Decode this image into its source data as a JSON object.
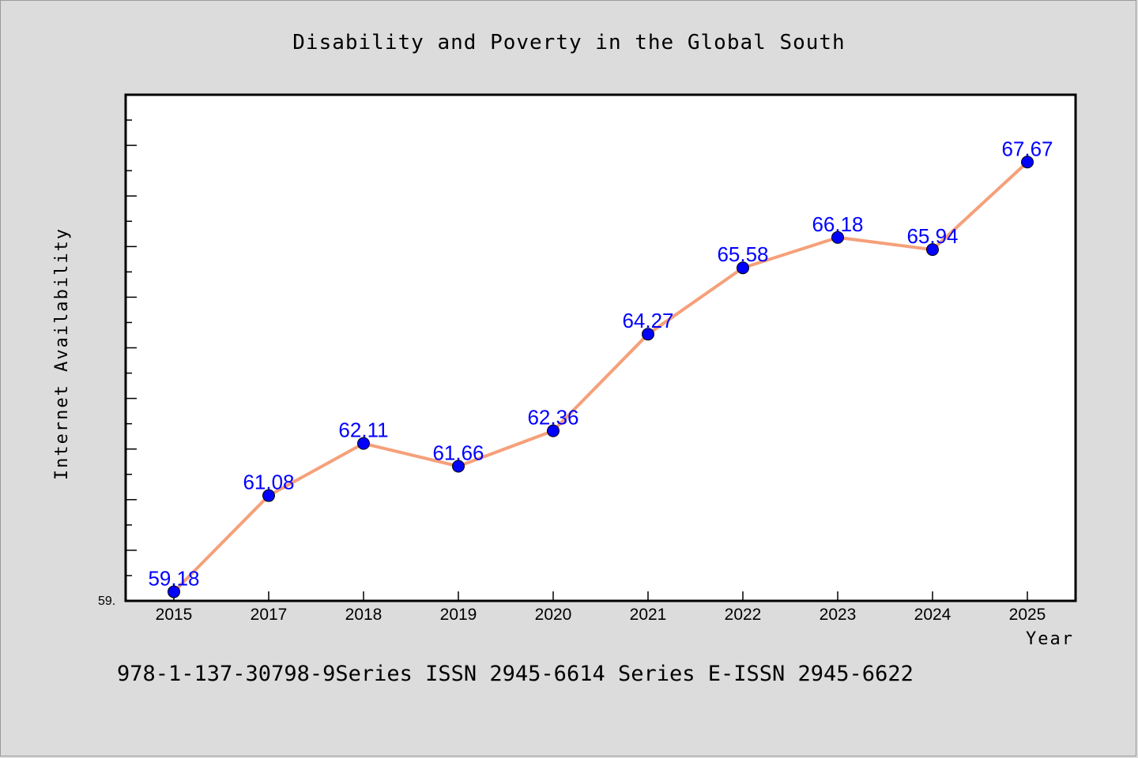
{
  "colors": {
    "background": "#dcdcdc",
    "plot_background": "#ffffff",
    "line": "#f5a07a",
    "marker": "#0000ff",
    "data_label": "#0000ff"
  },
  "chart_data": {
    "type": "line",
    "title": "Disability and Poverty in the Global South",
    "xlabel": "Year",
    "ylabel": "Internet Availability",
    "categories": [
      "2015",
      "2017",
      "2018",
      "2019",
      "2020",
      "2021",
      "2022",
      "2023",
      "2024",
      "2025"
    ],
    "series": [
      {
        "values": [
          59.18,
          61.08,
          62.11,
          61.66,
          62.36,
          64.27,
          65.58,
          66.18,
          65.94,
          67.67
        ],
        "labels": [
          "59.18",
          "61.08",
          "62.11",
          "61.66",
          "62.36",
          "64.27",
          "65.58",
          "66.18",
          "65.94",
          "67.67"
        ]
      }
    ],
    "ylim": [
      59.0,
      69.0
    ],
    "y_min_tick_label": "59.",
    "grid": false,
    "legend": "none"
  },
  "footer": {
    "text": "978-1-137-30798-9Series ISSN 2945-6614 Series E-ISSN 2945-6622"
  }
}
